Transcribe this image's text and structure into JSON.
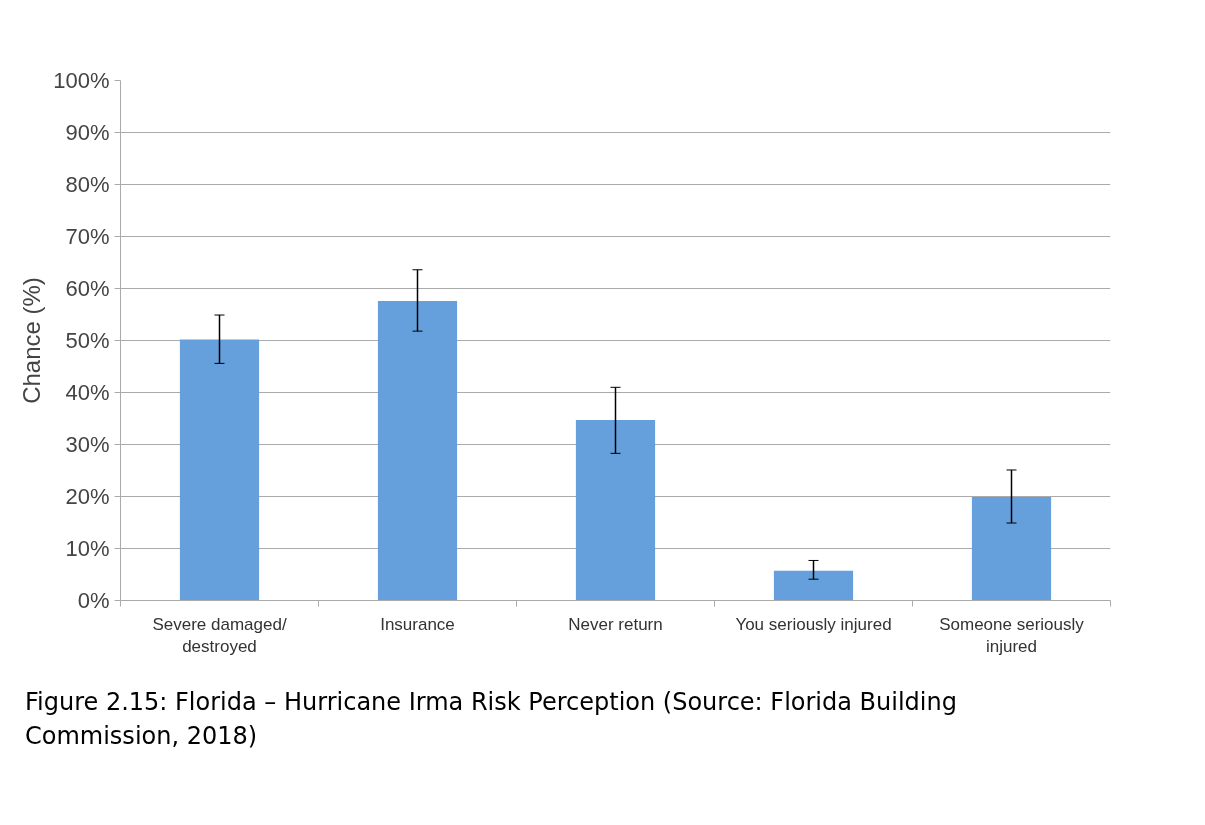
{
  "chart_data": {
    "type": "bar",
    "ylabel": "Chance (%)",
    "categories": [
      "Severe damaged/\ndestroyed",
      "Insurance",
      "Never return",
      "You seriously injured",
      "Someone seriously\ninjured"
    ],
    "values": [
      50.2,
      57.6,
      34.7,
      5.7,
      19.9
    ],
    "errors": [
      [
        45.6,
        54.9
      ],
      [
        51.8,
        63.6
      ],
      [
        28.3,
        41.0
      ],
      [
        4.1,
        7.7
      ],
      [
        14.9,
        25.1
      ]
    ],
    "color": "#66a0dc",
    "ylim": [
      0,
      100
    ],
    "yticks": [
      {
        "value": 0,
        "label": "0%"
      },
      {
        "value": 10,
        "label": "10%"
      },
      {
        "value": 20,
        "label": "20%"
      },
      {
        "value": 30,
        "label": "30%"
      },
      {
        "value": 40,
        "label": "40%"
      },
      {
        "value": 50,
        "label": "50%"
      },
      {
        "value": 60,
        "label": "60%"
      },
      {
        "value": 70,
        "label": "70%"
      },
      {
        "value": 80,
        "label": "80%"
      },
      {
        "value": 90,
        "label": "90%"
      },
      {
        "value": 100,
        "label": "100%"
      }
    ],
    "grid": "y",
    "annotations": [
      "Figure 2.15: Florida – Hurricane Irma Risk Perception (Source: Florida Building Commission, 2018)"
    ]
  }
}
